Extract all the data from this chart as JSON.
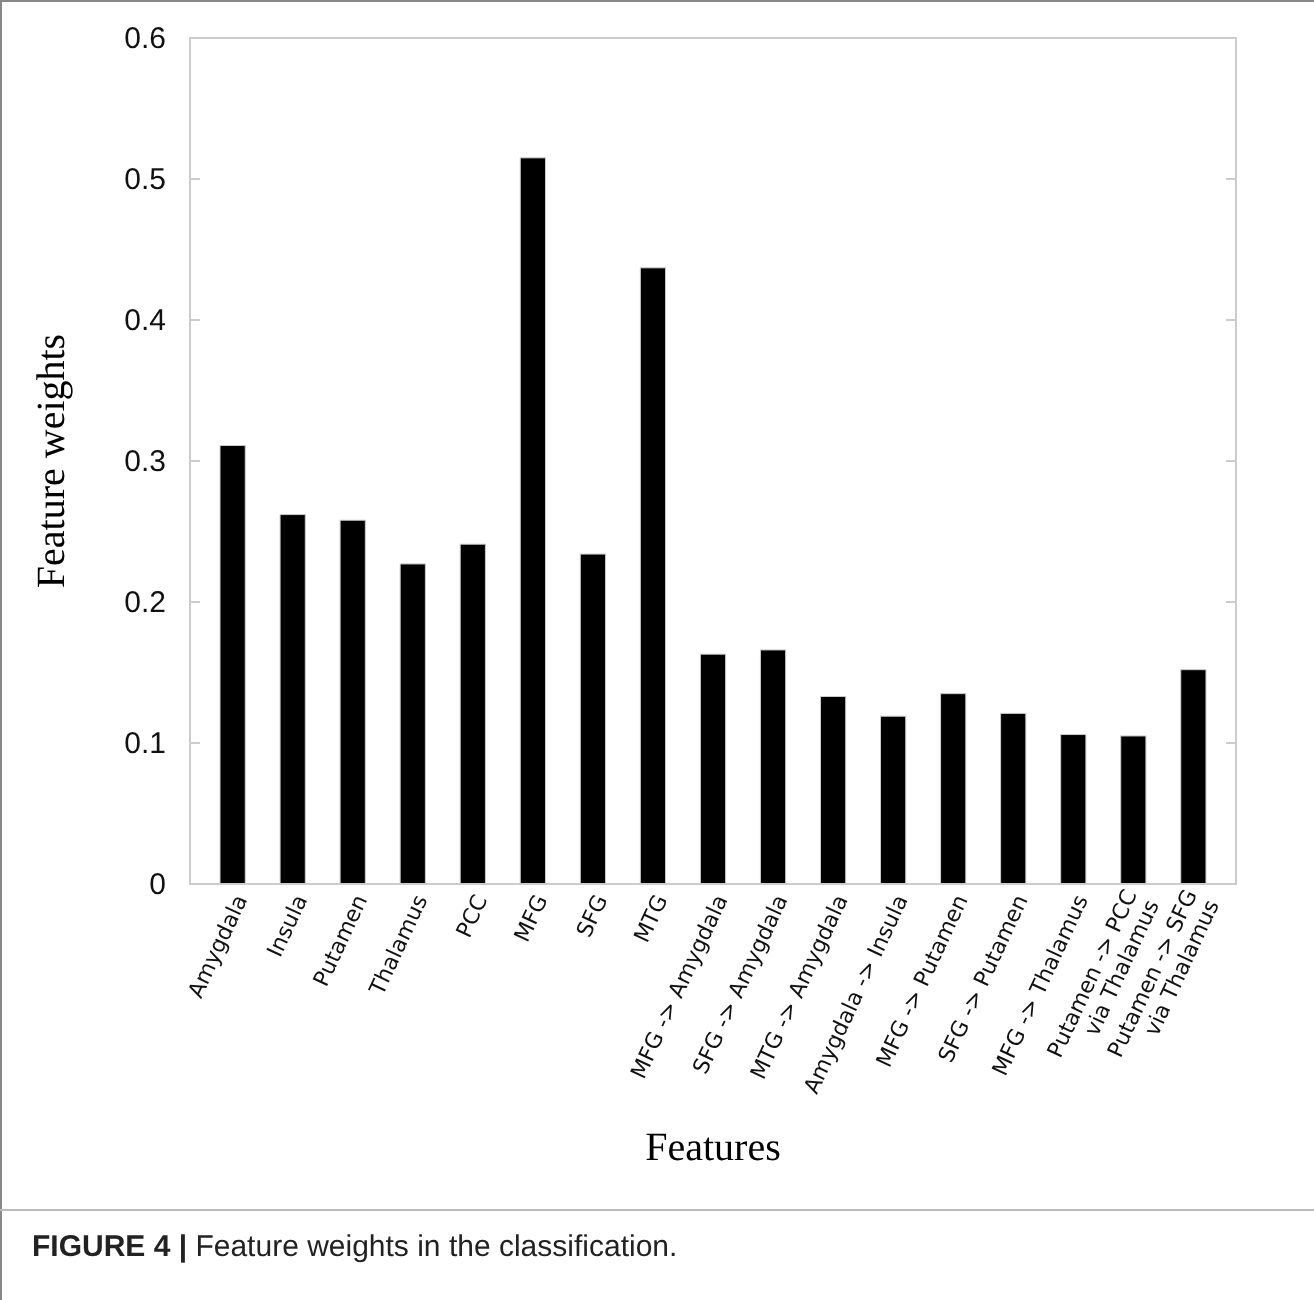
{
  "chart_data": {
    "type": "bar",
    "xlabel": "Features",
    "ylabel": "Feature weights",
    "categories": [
      "Amygdala",
      "Insula",
      "Putamen",
      "Thalamus",
      "PCC",
      "MFG",
      "SFG",
      "MTG",
      "MFG -> Amygdala",
      "SFG -> Amygdala",
      "MTG -> Amygdala",
      "Amygdala -> Insula",
      "MFG -> Putamen",
      "SFG -> Putamen",
      "MFG -> Thalamus",
      "Putamen -> PCC\nvia Thalamus",
      "Putamen -> SFG\nvia Thalamus"
    ],
    "values": [
      0.311,
      0.262,
      0.258,
      0.227,
      0.241,
      0.515,
      0.234,
      0.437,
      0.163,
      0.166,
      0.133,
      0.119,
      0.135,
      0.121,
      0.106,
      0.105,
      0.152
    ],
    "color": "#000000",
    "ylim": [
      0,
      0.6
    ],
    "yticks": [
      0,
      0.1,
      0.2,
      0.3,
      0.4,
      0.5,
      0.6
    ],
    "grid": false,
    "annotations": [
      "FIGURE 4 | Feature weights in the classification."
    ]
  }
}
